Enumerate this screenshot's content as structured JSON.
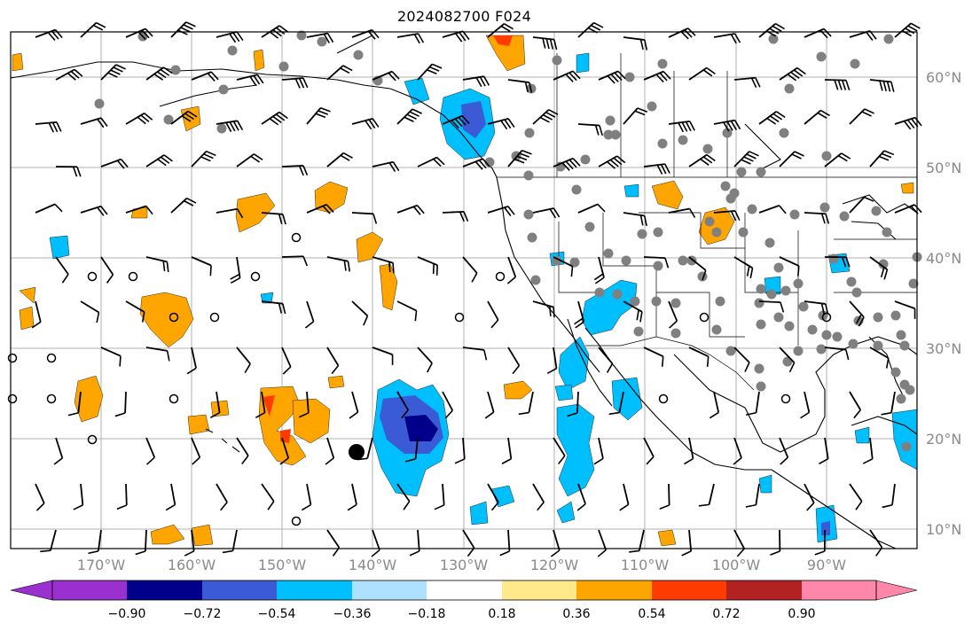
{
  "title": "2024082700 F024",
  "axes": {
    "lon_labels": [
      "170°W",
      "160°W",
      "150°W",
      "140°W",
      "130°W",
      "120°W",
      "110°W",
      "100°W",
      "90°W"
    ],
    "lat_labels": [
      "60°N",
      "50°N",
      "40°N",
      "30°N",
      "20°N",
      "10°N"
    ]
  },
  "colorbar": {
    "tick_labels": [
      "−0.90",
      "−0.72",
      "−0.54",
      "−0.36",
      "−0.18",
      "0.18",
      "0.36",
      "0.54",
      "0.72",
      "0.90"
    ],
    "colors": [
      "#9b30d0",
      "#00008b",
      "#3b5bd6",
      "#00bfff",
      "#aee0ff",
      "#ffffff",
      "#ffe98a",
      "#ffa500",
      "#ff3c00",
      "#b22222",
      "#ff88aa"
    ]
  },
  "colors": {
    "positive": "#ffa500",
    "positive_light": "#ffe98a",
    "positive_strong": "#ff3c00",
    "negative": "#00bfff",
    "negative_mid": "#3b5bd6",
    "negative_strong": "#00008b",
    "station": "#808080",
    "coast": "#000000",
    "grid": "#b0b0b0"
  }
}
